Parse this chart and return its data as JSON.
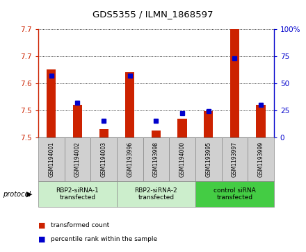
{
  "title": "GDS5355 / ILMN_1868597",
  "samples": [
    "GSM1194001",
    "GSM1194002",
    "GSM1194003",
    "GSM1193996",
    "GSM1193998",
    "GSM1194000",
    "GSM1193995",
    "GSM1193997",
    "GSM1193999"
  ],
  "red_values": [
    7.625,
    7.56,
    7.515,
    7.62,
    7.512,
    7.535,
    7.548,
    7.7,
    7.56
  ],
  "blue_percentiles": [
    57,
    32,
    15,
    57,
    15,
    22,
    24,
    73,
    30
  ],
  "ylim_left": [
    7.5,
    7.7
  ],
  "ylim_right": [
    0,
    100
  ],
  "yticks_left": [
    7.5,
    7.55,
    7.6,
    7.65,
    7.7
  ],
  "yticks_right": [
    0,
    25,
    50,
    75,
    100
  ],
  "groups": [
    {
      "label": "RBP2-siRNA-1\ntransfected",
      "start": 0,
      "end": 3,
      "color": "#cceecc"
    },
    {
      "label": "RBP2-siRNA-2\ntransfected",
      "start": 3,
      "end": 6,
      "color": "#cceecc"
    },
    {
      "label": "control siRNA\ntransfected",
      "start": 6,
      "end": 9,
      "color": "#44cc44"
    }
  ],
  "protocol_label": "protocol",
  "red_color": "#cc2200",
  "blue_color": "#0000cc",
  "bar_width": 0.35,
  "blue_marker_size": 5,
  "plot_bg_color": "#ffffff",
  "sample_box_color": "#d0d0d0",
  "grid_color": "#000000"
}
